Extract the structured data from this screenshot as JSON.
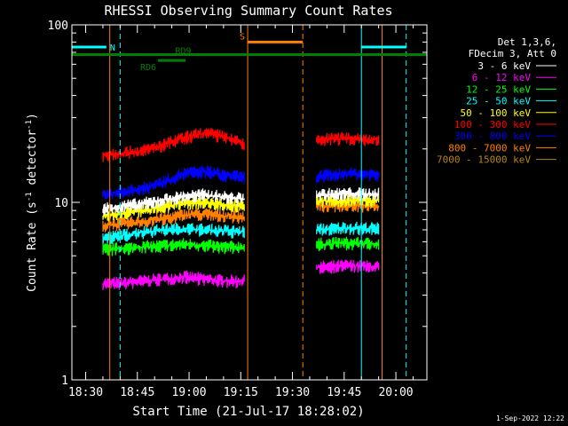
{
  "chart_data": {
    "type": "line",
    "title": "RHESSI Observing Summary Count Rates",
    "xlabel": "Start Time (21-Jul-17 18:28:02)",
    "ylabel_main": "Count Rate (s",
    "ylabel_sup1": "-1",
    "ylabel_mid": " detector",
    "ylabel_sup2": "-1",
    "ylabel_end": ")",
    "y_scale": "log",
    "ylim": [
      1,
      100
    ],
    "xlim": [
      "18:26",
      "20:09"
    ],
    "x_ticks": [
      "18:30",
      "18:45",
      "19:00",
      "19:15",
      "19:30",
      "19:45",
      "20:00"
    ],
    "y_ticks": [
      "1",
      "10",
      "100"
    ],
    "grid": false,
    "date_stamp": "1-Sep-2022 12:22",
    "legend": {
      "placement": "top-right",
      "header1": "Det 1,3,6,",
      "header2": "FDecim 3, Att 0",
      "entries": [
        {
          "label": "3 - 6 keV",
          "color": "#ffffff"
        },
        {
          "label": "6 - 12 keV",
          "color": "#ff00ff"
        },
        {
          "label": "12 - 25 keV",
          "color": "#00ff00"
        },
        {
          "label": "25 - 50 keV",
          "color": "#00ffff"
        },
        {
          "label": "50 - 100 keV",
          "color": "#ffff00"
        },
        {
          "label": "100 - 300 keV",
          "color": "#ff0000"
        },
        {
          "label": "300 - 800 keV",
          "color": "#0000ff"
        },
        {
          "label": "800 - 7000 keV",
          "color": "#ff8000"
        },
        {
          "label": "7000 - 15000 keV",
          "color": "#b8860b"
        }
      ]
    },
    "segments": [
      {
        "start": "18:35",
        "end": "19:16"
      },
      {
        "start": "19:37",
        "end": "19:55"
      }
    ],
    "series": [
      {
        "color": "#ff00ff",
        "values": [
          3.5,
          3.5,
          3.6,
          3.7,
          3.8,
          3.7,
          3.6,
          3.6
        ],
        "values2": [
          4.3,
          4.4,
          4.3
        ]
      },
      {
        "color": "#00ff00",
        "values": [
          5.4,
          5.5,
          5.6,
          5.7,
          5.8,
          5.7,
          5.6,
          5.6
        ],
        "values2": [
          5.8,
          5.9,
          5.8
        ]
      },
      {
        "color": "#00ffff",
        "values": [
          6.3,
          6.5,
          6.8,
          7.0,
          7.1,
          7.0,
          6.9,
          6.8
        ],
        "values2": [
          7.0,
          7.2,
          7.1
        ]
      },
      {
        "color": "#ff8000",
        "values": [
          7.4,
          7.6,
          7.8,
          8.1,
          8.5,
          8.6,
          8.4,
          8.3
        ],
        "values2": [
          9.5,
          9.7,
          9.5
        ]
      },
      {
        "color": "#ffff00",
        "values": [
          8.4,
          8.7,
          9.0,
          9.5,
          9.9,
          10.0,
          9.7,
          9.5
        ],
        "values2": [
          10.1,
          10.3,
          10.2
        ]
      },
      {
        "color": "#ffffff",
        "values": [
          9.2,
          9.5,
          9.8,
          10.3,
          10.8,
          11.0,
          10.7,
          10.4
        ],
        "values2": [
          11.0,
          11.2,
          11.1
        ]
      },
      {
        "color": "#0000ff",
        "values": [
          11.0,
          11.4,
          12.0,
          13.0,
          14.5,
          15.0,
          14.3,
          13.8
        ],
        "values2": [
          14.0,
          14.5,
          14.3
        ]
      },
      {
        "color": "#ff0000",
        "values": [
          18.5,
          19.0,
          19.5,
          21.0,
          23.0,
          24.5,
          23.5,
          21.0
        ],
        "values2": [
          22.5,
          23.0,
          22.5
        ]
      }
    ],
    "annotations": [
      {
        "label": "N",
        "color": "#00ffff",
        "segments": [
          [
            "18:26",
            "18:36"
          ],
          [
            "19:50",
            "20:03"
          ]
        ],
        "y": 75
      },
      {
        "label": "S",
        "color": "#ff8000",
        "segments": [
          [
            "19:17",
            "19:33"
          ]
        ],
        "y": 80
      },
      {
        "label": "RD6",
        "color": "#008000",
        "segments": [
          [
            "18:51",
            "18:59"
          ]
        ],
        "y": 63
      },
      {
        "label": "RD9",
        "color": "#008000",
        "segments": [
          [
            "18:26",
            "20:09"
          ]
        ],
        "y": 68
      }
    ],
    "vlines": [
      {
        "time": "18:26",
        "color": "#00ffff",
        "style": "solid"
      },
      {
        "time": "18:40",
        "color": "#00ffff",
        "style": "dashed"
      },
      {
        "time": "19:50",
        "color": "#00ffff",
        "style": "solid"
      },
      {
        "time": "20:03",
        "color": "#00ffff",
        "style": "dashed"
      },
      {
        "time": "18:37",
        "color": "#ff8000",
        "style": "solid"
      },
      {
        "time": "19:17",
        "color": "#ff8000",
        "style": "solid"
      },
      {
        "time": "19:33",
        "color": "#ff8000",
        "style": "dashed"
      },
      {
        "time": "19:56",
        "color": "#ff8000",
        "style": "solid"
      }
    ]
  }
}
